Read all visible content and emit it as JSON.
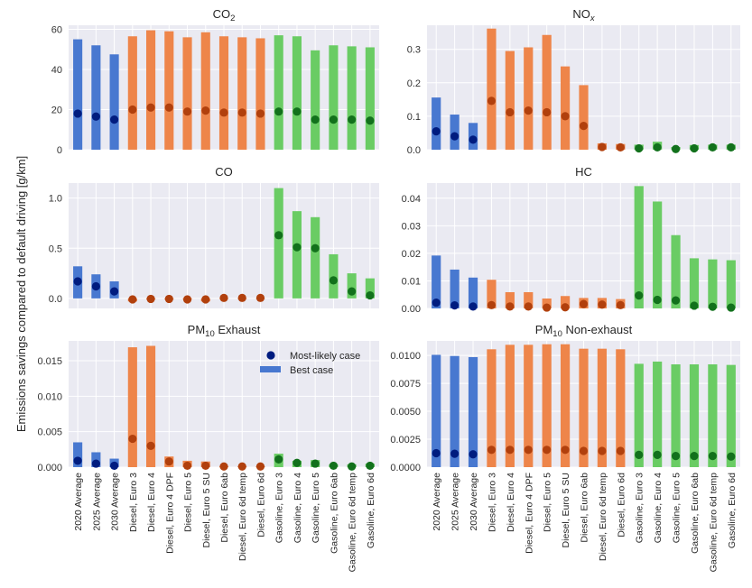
{
  "chart_data": {
    "type": "bar",
    "ylabel": "Emissions savings compared to default driving [g/km]",
    "categories": [
      "2020 Average",
      "2025 Average",
      "2030 Average",
      "Diesel, Euro 3",
      "Diesel, Euro 4",
      "Diesel, Euro 4 DPF",
      "Diesel, Euro 5",
      "Diesel, Euro 5 SU",
      "Diesel, Euro 6ab",
      "Diesel, Euro 6d temp",
      "Diesel, Euro 6d",
      "Gasoline, Euro 3",
      "Gasoline, Euro 4",
      "Gasoline, Euro 5",
      "Gasoline, Euro 6ab",
      "Gasoline, Euro 6d temp",
      "Gasoline, Euro 6d"
    ],
    "category_groups": [
      "average",
      "average",
      "average",
      "diesel",
      "diesel",
      "diesel",
      "diesel",
      "diesel",
      "diesel",
      "diesel",
      "diesel",
      "gasoline",
      "gasoline",
      "gasoline",
      "gasoline",
      "gasoline",
      "gasoline"
    ],
    "colors": {
      "average": {
        "bar": "#4878d0",
        "dot": "#001c7f"
      },
      "diesel": {
        "bar": "#ee854a",
        "dot": "#b1400d"
      },
      "gasoline": {
        "bar": "#6acc64",
        "dot": "#12711c"
      },
      "plot_bg": "#eaeaf2",
      "grid": "#ffffff"
    },
    "legend": {
      "placement": "top-right",
      "panel": "PM10 Exhaust",
      "entries": [
        {
          "label": "Most-likely case",
          "marker": "dot"
        },
        {
          "label": "Best case",
          "marker": "bar"
        }
      ]
    },
    "panels": [
      {
        "title_main": "CO",
        "title_sub": "2",
        "sub_style": "subscript",
        "ylim": [
          0,
          62
        ],
        "yticks": [
          0,
          20,
          40,
          60
        ],
        "tick_labels": [
          "0",
          "20",
          "40",
          "60"
        ],
        "best_case": [
          55,
          52,
          47.5,
          56.5,
          59.5,
          59,
          56,
          58.5,
          56.5,
          56,
          55.5,
          57,
          56.5,
          49.5,
          52,
          51.5,
          51
        ],
        "most_likely": [
          18,
          16.5,
          15,
          20,
          21,
          21,
          19,
          19.5,
          18.5,
          18.5,
          18,
          19,
          19,
          15,
          15,
          15,
          14.5
        ]
      },
      {
        "title_main": "NO",
        "title_sub": "x",
        "sub_style": "subscript-italic",
        "ylim": [
          0,
          0.372
        ],
        "yticks": [
          0,
          0.1,
          0.2,
          0.3
        ],
        "tick_labels": [
          "0.0",
          "0.1",
          "0.2",
          "0.3"
        ],
        "best_case": [
          0.156,
          0.105,
          0.08,
          0.362,
          0.295,
          0.306,
          0.343,
          0.249,
          0.193,
          0.019,
          0.017,
          0.015,
          0.024,
          0.008,
          0.014,
          0.015,
          0.015
        ],
        "most_likely": [
          0.055,
          0.04,
          0.03,
          0.146,
          0.112,
          0.117,
          0.112,
          0.1,
          0.071,
          0.008,
          0.007,
          0.004,
          0.007,
          0.002,
          0.004,
          0.007,
          0.007
        ]
      },
      {
        "title_main": "CO",
        "title_sub": "",
        "sub_style": "none",
        "ylim": [
          -0.1,
          1.15
        ],
        "yticks": [
          0,
          0.5,
          1.0
        ],
        "tick_labels": [
          "0.0",
          "0.5",
          "1.0"
        ],
        "best_case": [
          0.32,
          0.24,
          0.17,
          -0.03,
          -0.01,
          -0.01,
          -0.01,
          -0.03,
          0.0,
          0.0,
          0.0,
          1.1,
          0.87,
          0.81,
          0.44,
          0.25,
          0.2
        ],
        "most_likely": [
          0.17,
          0.12,
          0.07,
          -0.01,
          -0.005,
          -0.005,
          -0.01,
          -0.01,
          0.005,
          0.005,
          0.005,
          0.63,
          0.51,
          0.5,
          0.18,
          0.07,
          0.03
        ]
      },
      {
        "title_main": "HC",
        "title_sub": "",
        "sub_style": "none",
        "ylim": [
          0,
          0.0455
        ],
        "yticks": [
          0,
          0.01,
          0.02,
          0.03,
          0.04
        ],
        "tick_labels": [
          "0.00",
          "0.01",
          "0.02",
          "0.03",
          "0.04"
        ],
        "best_case": [
          0.0192,
          0.0141,
          0.0112,
          0.0104,
          0.0059,
          0.0059,
          0.0036,
          0.0045,
          0.0038,
          0.0038,
          0.0034,
          0.0444,
          0.0388,
          0.0266,
          0.0182,
          0.0178,
          0.0175
        ],
        "most_likely": [
          0.0021,
          0.0011,
          0.0007,
          0.0012,
          0.0007,
          0.0007,
          0.0003,
          0.0004,
          0.0016,
          0.0014,
          0.0012,
          0.0047,
          0.0031,
          0.0029,
          0.001,
          0.0006,
          0.0003
        ]
      },
      {
        "title_main": "PM",
        "title_sub": "10",
        "title_suffix": " Exhaust",
        "sub_style": "subscript",
        "ylim": [
          0,
          0.0178
        ],
        "yticks": [
          0,
          0.005,
          0.01,
          0.015
        ],
        "tick_labels": [
          "0.000",
          "0.005",
          "0.010",
          "0.015"
        ],
        "best_case": [
          0.0035,
          0.0021,
          0.0012,
          0.0169,
          0.0171,
          0.0015,
          0.0009,
          0.0008,
          0.0001,
          0.0001,
          0.0001,
          0.0019,
          0.0009,
          0.001,
          0.0004,
          0.0004,
          0.0005
        ],
        "most_likely": [
          0.0009,
          0.0005,
          0.0002,
          0.004,
          0.003,
          0.0008,
          0.0002,
          0.0002,
          0.0001,
          0.0001,
          0.0001,
          0.0011,
          0.0006,
          0.0005,
          0.0002,
          0.0001,
          0.0002
        ]
      },
      {
        "title_main": "PM",
        "title_sub": "10",
        "title_suffix": " Non-exhaust",
        "sub_style": "subscript",
        "ylim": [
          0,
          0.0113
        ],
        "yticks": [
          0,
          0.0025,
          0.005,
          0.0075,
          0.01
        ],
        "tick_labels": [
          "0.0000",
          "0.0025",
          "0.0050",
          "0.0075",
          "0.0100"
        ],
        "best_case": [
          0.01005,
          0.00995,
          0.00985,
          0.01055,
          0.01095,
          0.01095,
          0.011,
          0.011,
          0.0106,
          0.0106,
          0.01055,
          0.00925,
          0.00945,
          0.0092,
          0.0092,
          0.0092,
          0.00915
        ],
        "most_likely": [
          0.00125,
          0.0012,
          0.00115,
          0.00155,
          0.00155,
          0.00155,
          0.00155,
          0.00155,
          0.00145,
          0.00145,
          0.00145,
          0.0011,
          0.0011,
          0.001,
          0.001,
          0.001,
          0.00095
        ]
      }
    ]
  }
}
